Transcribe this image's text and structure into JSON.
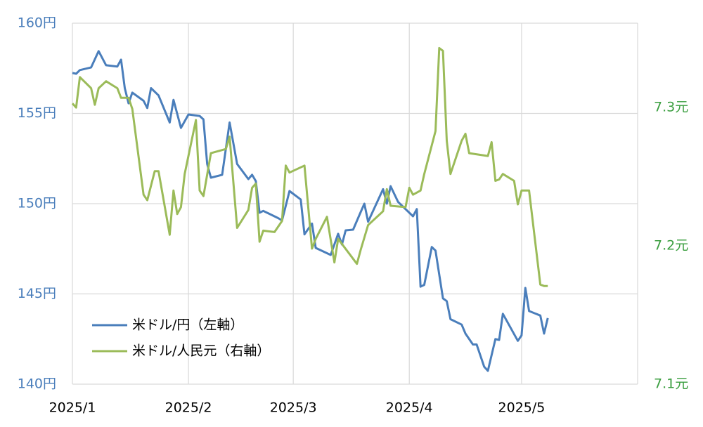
{
  "chart_data": {
    "type": "line",
    "xlim": [
      0,
      151
    ],
    "xticks": [
      {
        "value": 0,
        "label": "2025/1"
      },
      {
        "value": 31,
        "label": "2025/2"
      },
      {
        "value": 59,
        "label": "2025/3"
      },
      {
        "value": 90,
        "label": "2025/4"
      },
      {
        "value": 120,
        "label": "2025/5"
      }
    ],
    "ylim": [
      140,
      160
    ],
    "yticks": [
      {
        "value": 140,
        "label": "140円"
      },
      {
        "value": 145,
        "label": "145円"
      },
      {
        "value": 150,
        "label": "150円"
      },
      {
        "value": 155,
        "label": "155円"
      },
      {
        "value": 160,
        "label": "160円"
      }
    ],
    "y2lim": [
      7.1,
      7.361
    ],
    "y2ticks": [
      {
        "value": 7.1,
        "label": "7.1元"
      },
      {
        "value": 7.2,
        "label": "7.2元"
      },
      {
        "value": 7.3,
        "label": "7.3元"
      }
    ],
    "grid": true,
    "legend": "lower left",
    "series": [
      {
        "name": "米ドル/円（左軸）",
        "color": "#4a7ebb",
        "x": [
          0,
          1,
          2,
          5,
          7,
          9,
          12,
          13,
          14,
          15,
          16,
          19,
          20,
          21,
          23,
          26,
          27,
          29,
          31,
          34,
          35,
          36,
          37,
          40,
          42,
          44,
          47,
          48,
          49,
          50,
          51,
          55,
          56,
          58,
          61,
          62,
          64,
          65,
          69,
          71,
          72,
          73,
          75,
          77,
          78,
          79,
          83,
          84,
          85,
          87,
          91,
          92,
          93,
          94,
          96,
          97,
          99,
          100,
          101,
          104,
          105,
          107,
          108,
          110,
          111,
          113,
          114,
          115,
          119,
          120,
          121,
          122,
          125,
          126,
          127
        ],
        "values": [
          157.24,
          157.2,
          157.4,
          157.55,
          158.45,
          157.67,
          157.6,
          157.98,
          156.4,
          155.56,
          156.15,
          155.7,
          155.3,
          156.4,
          156.0,
          154.5,
          155.75,
          154.2,
          154.94,
          154.86,
          154.67,
          152.2,
          151.44,
          151.6,
          154.5,
          152.2,
          151.36,
          151.6,
          151.25,
          149.5,
          149.6,
          149.2,
          149.07,
          150.7,
          150.23,
          148.3,
          148.9,
          147.55,
          147.16,
          148.33,
          147.74,
          148.52,
          148.56,
          149.53,
          150.0,
          149.0,
          150.8,
          150.0,
          150.97,
          150.1,
          149.3,
          149.7,
          145.4,
          145.5,
          147.6,
          147.4,
          144.75,
          144.6,
          143.6,
          143.3,
          142.8,
          142.2,
          142.2,
          140.97,
          140.74,
          142.5,
          142.45,
          143.9,
          142.4,
          142.7,
          145.33,
          144.05,
          143.8,
          142.8,
          143.66
        ]
      },
      {
        "name": "米ドル/人民元（右軸）",
        "color": "#9bbb59",
        "axis": "y2",
        "x": [
          0,
          1,
          2,
          5,
          6,
          7,
          9,
          12,
          13,
          15,
          16,
          19,
          20,
          22,
          23,
          26,
          27,
          28,
          29,
          30,
          33,
          34,
          35,
          37,
          41,
          42,
          44,
          47,
          48,
          49,
          50,
          51,
          54,
          56,
          57,
          58,
          62,
          64,
          65,
          68,
          70,
          71,
          76,
          77,
          79,
          83,
          84,
          85,
          89,
          90,
          91,
          93,
          94,
          97,
          98,
          99,
          100,
          101,
          104,
          105,
          106,
          111,
          112,
          113,
          114,
          115,
          118,
          119,
          120,
          122,
          125,
          126,
          127
        ],
        "values": [
          7.303,
          7.3,
          7.322,
          7.314,
          7.302,
          7.314,
          7.319,
          7.314,
          7.307,
          7.307,
          7.299,
          7.237,
          7.233,
          7.254,
          7.254,
          7.208,
          7.24,
          7.223,
          7.228,
          7.252,
          7.291,
          7.24,
          7.236,
          7.267,
          7.27,
          7.279,
          7.213,
          7.226,
          7.242,
          7.245,
          7.203,
          7.211,
          7.21,
          7.218,
          7.258,
          7.253,
          7.258,
          7.198,
          7.205,
          7.221,
          7.188,
          7.205,
          7.187,
          7.197,
          7.215,
          7.225,
          7.241,
          7.229,
          7.228,
          7.242,
          7.237,
          7.24,
          7.252,
          7.283,
          7.343,
          7.341,
          7.276,
          7.252,
          7.276,
          7.281,
          7.267,
          7.265,
          7.275,
          7.247,
          7.248,
          7.252,
          7.247,
          7.23,
          7.24,
          7.24,
          7.172,
          7.171,
          7.171
        ]
      }
    ]
  }
}
